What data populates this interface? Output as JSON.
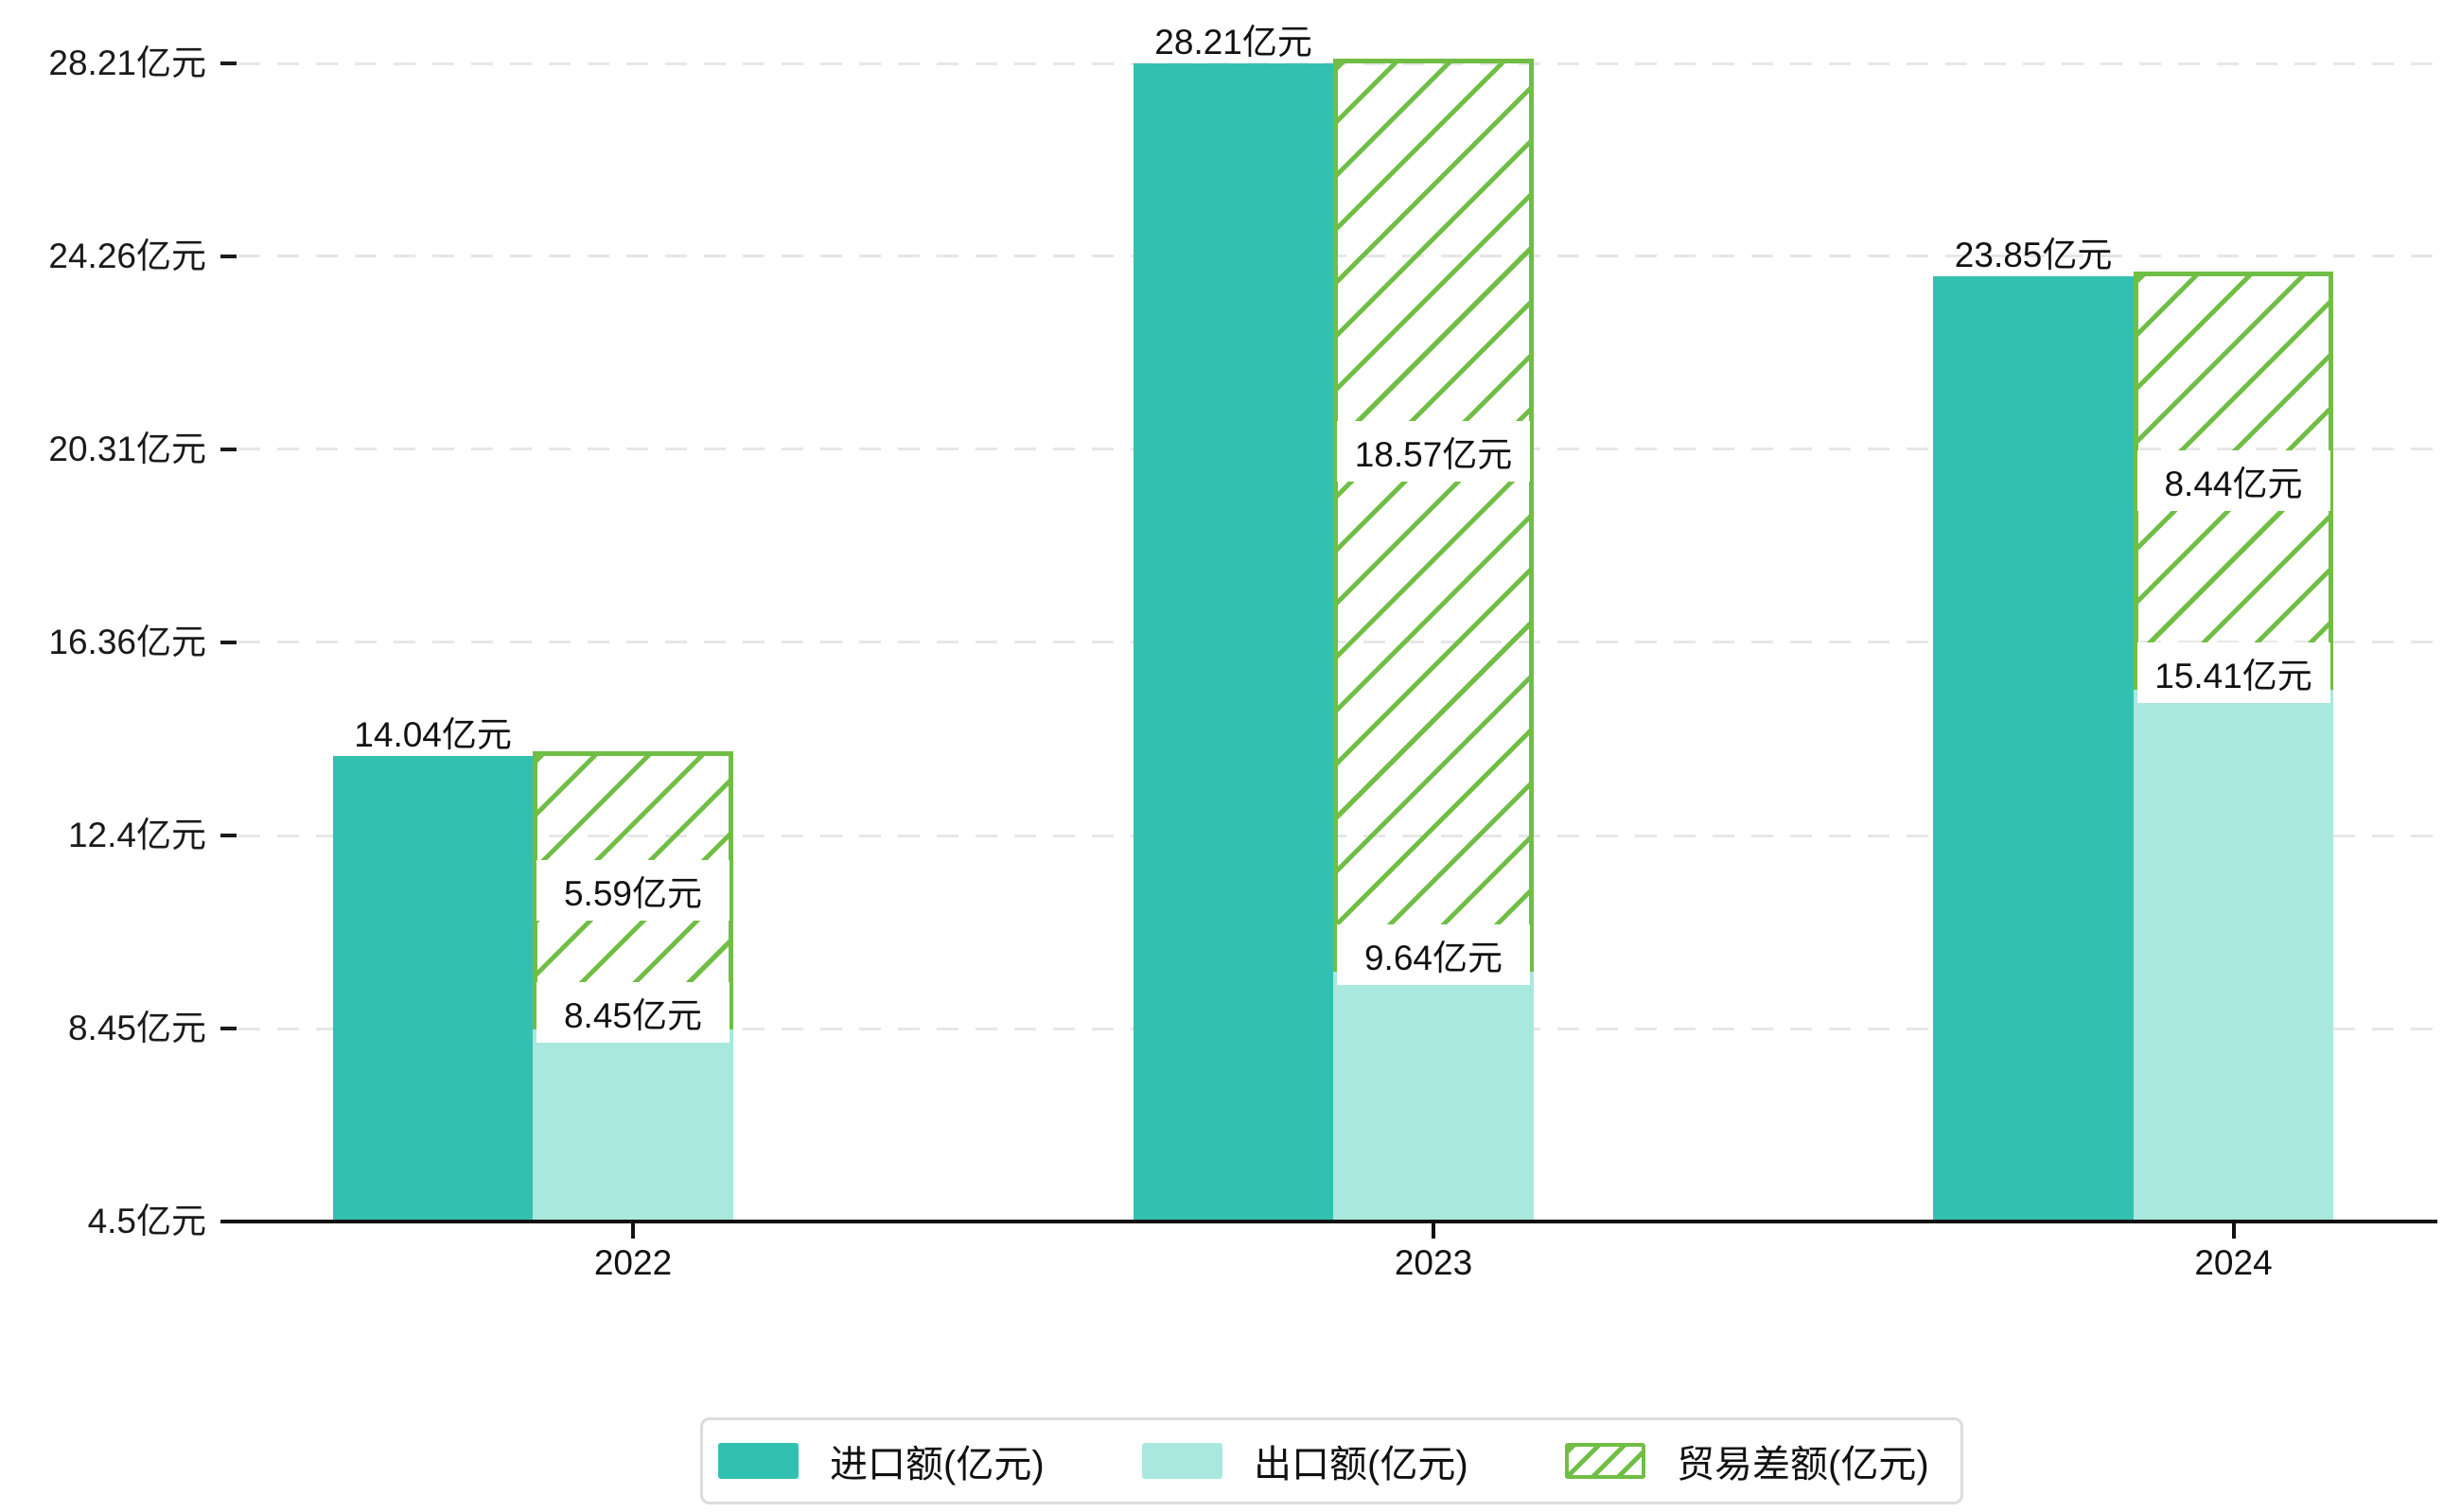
{
  "unit": "亿元",
  "colors": {
    "import": "#32c1b1",
    "export": "#a9e8de",
    "balance": "#70be45",
    "axis": "#111111",
    "grid": "#e7e7e7",
    "legend_border": "#dcdcdc"
  },
  "legend": {
    "items": [
      {
        "label": "进口额(亿元)",
        "series": "import"
      },
      {
        "label": "出口额(亿元)",
        "series": "export"
      },
      {
        "label": "贸易差额(亿元)",
        "series": "balance"
      }
    ]
  },
  "chart_data": {
    "type": "bar",
    "categories": [
      "2022",
      "2023",
      "2024"
    ],
    "series": [
      {
        "name": "进口额(亿元)",
        "role": "import",
        "values": [
          14.04,
          28.21,
          23.85
        ]
      },
      {
        "name": "出口额(亿元)",
        "role": "export",
        "values": [
          8.45,
          9.64,
          15.41
        ]
      },
      {
        "name": "贸易差额(亿元)",
        "role": "balance",
        "values": [
          5.59,
          18.57,
          8.44
        ]
      }
    ],
    "value_labels": {
      "import": [
        "14.04亿元",
        "28.21亿元",
        "23.85亿元"
      ],
      "export": [
        "8.45亿元",
        "9.64亿元",
        "15.41亿元"
      ],
      "balance": [
        "5.59亿元",
        "18.57亿元",
        "8.44亿元"
      ]
    },
    "ylim": [
      4.5,
      28.21
    ],
    "yticks": [
      4.5,
      8.45,
      12.4,
      16.36,
      20.31,
      24.26,
      28.21
    ],
    "ytick_labels": [
      "4.5亿元",
      "8.45亿元",
      "12.4亿元",
      "16.36亿元",
      "20.31亿元",
      "24.26亿元",
      "28.21亿元"
    ],
    "grid": "dashed-horizontal",
    "legend_position": "bottom-center",
    "notes": "trade-balance bar is hatched and stacked on top of the export bar, reaching the import bar top"
  }
}
